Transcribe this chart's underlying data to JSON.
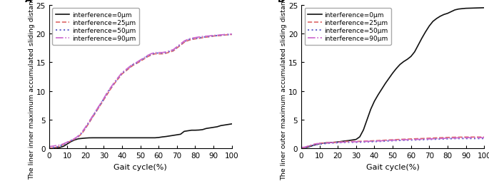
{
  "panel_A": {
    "ylabel": "The liner inner maximum accumulated sliding distance(mm)",
    "xlabel": "Gait cycle(%)",
    "ylim": [
      0,
      25
    ],
    "xlim": [
      0,
      100
    ],
    "yticks": [
      0,
      5,
      10,
      15,
      20,
      25
    ],
    "xticks": [
      0,
      10,
      20,
      30,
      40,
      50,
      60,
      70,
      80,
      90,
      100
    ],
    "lines": {
      "interference_0": {
        "label": "interference=0μm",
        "color": "#111111",
        "linestyle": "solid",
        "linewidth": 1.2,
        "x": [
          0,
          2,
          4,
          6,
          8,
          10,
          12,
          14,
          16,
          18,
          20,
          22,
          24,
          26,
          28,
          30,
          32,
          34,
          36,
          38,
          40,
          42,
          44,
          46,
          48,
          50,
          52,
          54,
          56,
          58,
          60,
          62,
          64,
          66,
          68,
          70,
          72,
          74,
          76,
          78,
          80,
          82,
          84,
          86,
          88,
          90,
          92,
          94,
          96,
          98,
          100
        ],
        "y": [
          0,
          0.03,
          0.07,
          0.15,
          0.35,
          0.75,
          1.15,
          1.45,
          1.65,
          1.72,
          1.78,
          1.82,
          1.83,
          1.83,
          1.83,
          1.83,
          1.83,
          1.83,
          1.83,
          1.83,
          1.83,
          1.83,
          1.83,
          1.83,
          1.83,
          1.83,
          1.83,
          1.83,
          1.83,
          1.83,
          1.88,
          1.98,
          2.05,
          2.15,
          2.25,
          2.35,
          2.45,
          2.95,
          3.05,
          3.15,
          3.15,
          3.18,
          3.25,
          3.45,
          3.55,
          3.65,
          3.75,
          3.95,
          4.05,
          4.15,
          4.25
        ]
      },
      "interference_25": {
        "label": "interference=25μm",
        "color": "#dd6666",
        "linestyle": "dashed",
        "linewidth": 1.2,
        "x": [
          0,
          2,
          4,
          6,
          8,
          10,
          12,
          14,
          16,
          18,
          20,
          22,
          24,
          26,
          28,
          30,
          32,
          34,
          36,
          38,
          40,
          42,
          44,
          46,
          48,
          50,
          52,
          54,
          56,
          58,
          60,
          62,
          64,
          66,
          68,
          70,
          72,
          74,
          76,
          78,
          80,
          82,
          84,
          86,
          88,
          90,
          92,
          94,
          96,
          98,
          100
        ],
        "y": [
          0,
          0.08,
          0.18,
          0.38,
          0.68,
          0.98,
          1.28,
          1.58,
          2.0,
          2.55,
          3.45,
          4.45,
          5.45,
          6.45,
          7.45,
          8.45,
          9.45,
          10.45,
          11.35,
          12.15,
          12.95,
          13.45,
          13.95,
          14.45,
          14.78,
          15.15,
          15.55,
          15.95,
          16.25,
          16.45,
          16.45,
          16.45,
          16.55,
          16.75,
          16.95,
          17.45,
          17.95,
          18.45,
          18.75,
          18.95,
          19.05,
          19.15,
          19.25,
          19.35,
          19.45,
          19.55,
          19.58,
          19.65,
          19.72,
          19.78,
          19.82
        ]
      },
      "interference_50": {
        "label": "interference=50μm",
        "color": "#6666cc",
        "linestyle": "dotted",
        "linewidth": 1.5,
        "x": [
          0,
          2,
          4,
          6,
          8,
          10,
          12,
          14,
          16,
          18,
          20,
          22,
          24,
          26,
          28,
          30,
          32,
          34,
          36,
          38,
          40,
          42,
          44,
          46,
          48,
          50,
          52,
          54,
          56,
          58,
          60,
          62,
          64,
          66,
          68,
          70,
          72,
          74,
          76,
          78,
          80,
          82,
          84,
          86,
          88,
          90,
          92,
          94,
          96,
          98,
          100
        ],
        "y": [
          0,
          0.1,
          0.2,
          0.4,
          0.7,
          1.02,
          1.32,
          1.62,
          2.08,
          2.68,
          3.58,
          4.58,
          5.58,
          6.58,
          7.58,
          8.58,
          9.68,
          10.58,
          11.48,
          12.28,
          13.08,
          13.58,
          14.08,
          14.58,
          14.88,
          15.28,
          15.68,
          16.08,
          16.38,
          16.58,
          16.58,
          16.58,
          16.68,
          16.88,
          17.08,
          17.58,
          18.08,
          18.58,
          18.88,
          19.08,
          19.13,
          19.23,
          19.33,
          19.43,
          19.48,
          19.58,
          19.63,
          19.68,
          19.76,
          19.8,
          19.86
        ]
      },
      "interference_90": {
        "label": "interference=90μm",
        "color": "#cc66cc",
        "linestyle": "dashdot",
        "linewidth": 1.2,
        "x": [
          0,
          2,
          4,
          6,
          8,
          10,
          12,
          14,
          16,
          18,
          20,
          22,
          24,
          26,
          28,
          30,
          32,
          34,
          36,
          38,
          40,
          42,
          44,
          46,
          48,
          50,
          52,
          54,
          56,
          58,
          60,
          62,
          64,
          66,
          68,
          70,
          72,
          74,
          76,
          78,
          80,
          82,
          84,
          86,
          88,
          90,
          92,
          94,
          96,
          98,
          100
        ],
        "y": [
          0.28,
          0.38,
          0.48,
          0.58,
          0.78,
          1.08,
          1.38,
          1.68,
          2.13,
          2.78,
          3.68,
          4.68,
          5.68,
          6.68,
          7.68,
          8.68,
          9.78,
          10.68,
          11.58,
          12.38,
          13.18,
          13.68,
          14.18,
          14.68,
          14.98,
          15.38,
          15.78,
          16.18,
          16.48,
          16.68,
          16.68,
          16.68,
          16.78,
          16.98,
          17.18,
          17.68,
          18.18,
          18.68,
          18.98,
          19.18,
          19.28,
          19.38,
          19.48,
          19.53,
          19.58,
          19.68,
          19.7,
          19.76,
          19.8,
          19.86,
          19.9
        ]
      }
    }
  },
  "panel_B": {
    "ylabel": "The liner outer maximum accumulated sliding distance(mm)",
    "xlabel": "Gait cycle(%)",
    "ylim": [
      0,
      25
    ],
    "xlim": [
      0,
      100
    ],
    "yticks": [
      0,
      5,
      10,
      15,
      20,
      25
    ],
    "xticks": [
      0,
      10,
      20,
      30,
      40,
      50,
      60,
      70,
      80,
      90,
      100
    ],
    "lines": {
      "interference_0": {
        "label": "interference=0μm",
        "color": "#111111",
        "linestyle": "solid",
        "linewidth": 1.2,
        "x": [
          0,
          2,
          4,
          6,
          8,
          10,
          12,
          14,
          16,
          18,
          20,
          22,
          24,
          26,
          28,
          30,
          32,
          34,
          36,
          38,
          40,
          42,
          44,
          46,
          48,
          50,
          52,
          54,
          56,
          58,
          60,
          62,
          64,
          66,
          68,
          70,
          72,
          74,
          76,
          78,
          80,
          82,
          84,
          86,
          88,
          90,
          92,
          94,
          96,
          98,
          100
        ],
        "y": [
          0,
          0.08,
          0.25,
          0.45,
          0.65,
          0.8,
          0.9,
          0.95,
          1.0,
          1.05,
          1.1,
          1.2,
          1.28,
          1.35,
          1.45,
          1.55,
          2.0,
          3.2,
          5.0,
          6.8,
          8.2,
          9.3,
          10.3,
          11.3,
          12.2,
          13.1,
          13.9,
          14.6,
          15.1,
          15.5,
          16.0,
          16.8,
          18.0,
          19.2,
          20.3,
          21.3,
          22.1,
          22.6,
          23.0,
          23.3,
          23.5,
          23.8,
          24.1,
          24.25,
          24.32,
          24.38,
          24.4,
          24.42,
          24.44,
          24.46,
          24.48
        ]
      },
      "interference_25": {
        "label": "interference=25μm",
        "color": "#dd6666",
        "linestyle": "dashed",
        "linewidth": 1.2,
        "x": [
          0,
          2,
          4,
          6,
          8,
          10,
          12,
          14,
          16,
          18,
          20,
          22,
          24,
          26,
          28,
          30,
          32,
          34,
          36,
          38,
          40,
          42,
          44,
          46,
          48,
          50,
          52,
          54,
          56,
          58,
          60,
          62,
          64,
          66,
          68,
          70,
          72,
          74,
          76,
          78,
          80,
          82,
          84,
          86,
          88,
          90,
          92,
          94,
          96,
          98,
          100
        ],
        "y": [
          0,
          0.12,
          0.35,
          0.6,
          0.78,
          0.88,
          0.93,
          0.97,
          1.0,
          1.03,
          1.08,
          1.12,
          1.18,
          1.2,
          1.2,
          1.2,
          1.22,
          1.24,
          1.26,
          1.29,
          1.32,
          1.35,
          1.38,
          1.42,
          1.46,
          1.49,
          1.52,
          1.55,
          1.58,
          1.6,
          1.63,
          1.66,
          1.68,
          1.7,
          1.73,
          1.76,
          1.79,
          1.82,
          1.84,
          1.87,
          1.89,
          1.91,
          1.93,
          1.94,
          1.95,
          1.96,
          1.96,
          1.96,
          1.96,
          1.96,
          1.96
        ]
      },
      "interference_50": {
        "label": "interference=50μm",
        "color": "#6666cc",
        "linestyle": "dotted",
        "linewidth": 1.5,
        "x": [
          0,
          2,
          4,
          6,
          8,
          10,
          12,
          14,
          16,
          18,
          20,
          22,
          24,
          26,
          28,
          30,
          32,
          34,
          36,
          38,
          40,
          42,
          44,
          46,
          48,
          50,
          52,
          54,
          56,
          58,
          60,
          62,
          64,
          66,
          68,
          70,
          72,
          74,
          76,
          78,
          80,
          82,
          84,
          86,
          88,
          90,
          92,
          94,
          96,
          98,
          100
        ],
        "y": [
          0,
          0.08,
          0.28,
          0.48,
          0.63,
          0.73,
          0.8,
          0.86,
          0.9,
          0.94,
          0.98,
          1.01,
          1.04,
          1.06,
          1.06,
          1.06,
          1.08,
          1.1,
          1.12,
          1.15,
          1.18,
          1.2,
          1.23,
          1.26,
          1.3,
          1.33,
          1.36,
          1.38,
          1.4,
          1.42,
          1.44,
          1.46,
          1.48,
          1.5,
          1.53,
          1.55,
          1.58,
          1.6,
          1.62,
          1.64,
          1.66,
          1.68,
          1.7,
          1.71,
          1.71,
          1.71,
          1.71,
          1.71,
          1.71,
          1.71,
          1.71
        ]
      },
      "interference_90": {
        "label": "interference=90μm",
        "color": "#cc66cc",
        "linestyle": "dashdot",
        "linewidth": 1.2,
        "x": [
          0,
          2,
          4,
          6,
          8,
          10,
          12,
          14,
          16,
          18,
          20,
          22,
          24,
          26,
          28,
          30,
          32,
          34,
          36,
          38,
          40,
          42,
          44,
          46,
          48,
          50,
          52,
          54,
          56,
          58,
          60,
          62,
          64,
          66,
          68,
          70,
          72,
          74,
          76,
          78,
          80,
          82,
          84,
          86,
          88,
          90,
          92,
          94,
          96,
          98,
          100
        ],
        "y": [
          0.12,
          0.22,
          0.42,
          0.62,
          0.77,
          0.85,
          0.9,
          0.94,
          0.97,
          1.0,
          1.03,
          1.06,
          1.09,
          1.12,
          1.13,
          1.14,
          1.16,
          1.18,
          1.2,
          1.23,
          1.26,
          1.28,
          1.31,
          1.34,
          1.38,
          1.41,
          1.44,
          1.46,
          1.48,
          1.5,
          1.52,
          1.54,
          1.56,
          1.58,
          1.61,
          1.63,
          1.65,
          1.68,
          1.7,
          1.73,
          1.76,
          1.78,
          1.8,
          1.82,
          1.83,
          1.84,
          1.85,
          1.85,
          1.85,
          1.85,
          1.85
        ]
      }
    }
  },
  "panel_labels": [
    "A",
    "B"
  ],
  "tick_fontsize": 7.5,
  "ylabel_fontsize": 6.8,
  "xlabel_fontsize": 8,
  "legend_fontsize": 6.5
}
